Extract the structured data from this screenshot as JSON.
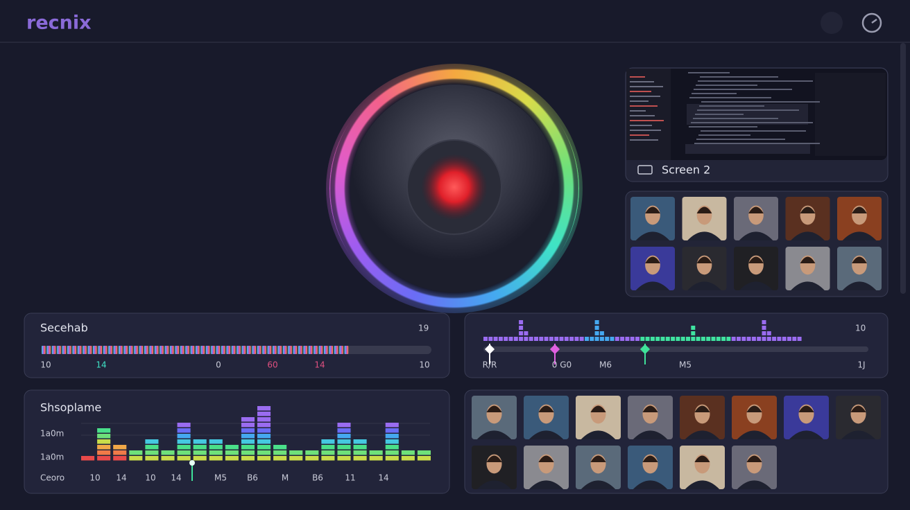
{
  "header": {
    "logo": "recnix"
  },
  "screen": {
    "label": "Screen 2"
  },
  "meter_panel": {
    "title": "Secehab",
    "top_right": "19",
    "ticks": [
      "10",
      "14",
      "0",
      "60",
      "14",
      "10"
    ]
  },
  "timeline_panel": {
    "top_right": "10",
    "ticks": [
      "R/R",
      "0 G0",
      "M6",
      "M5",
      "1J"
    ]
  },
  "levels_panel": {
    "title": "Shsoplame",
    "y_labels": [
      "1a0m",
      "1a0m"
    ],
    "x_title": "Ceoro",
    "ticks": [
      "10",
      "14",
      "10",
      "14",
      "M5",
      "B6",
      "M",
      "B6",
      "11",
      "14"
    ],
    "levels": [
      1,
      6,
      3,
      2,
      4,
      2,
      7,
      4,
      4,
      3,
      8,
      10,
      3,
      2,
      2,
      4,
      7,
      4,
      2,
      7,
      2,
      2
    ]
  }
}
